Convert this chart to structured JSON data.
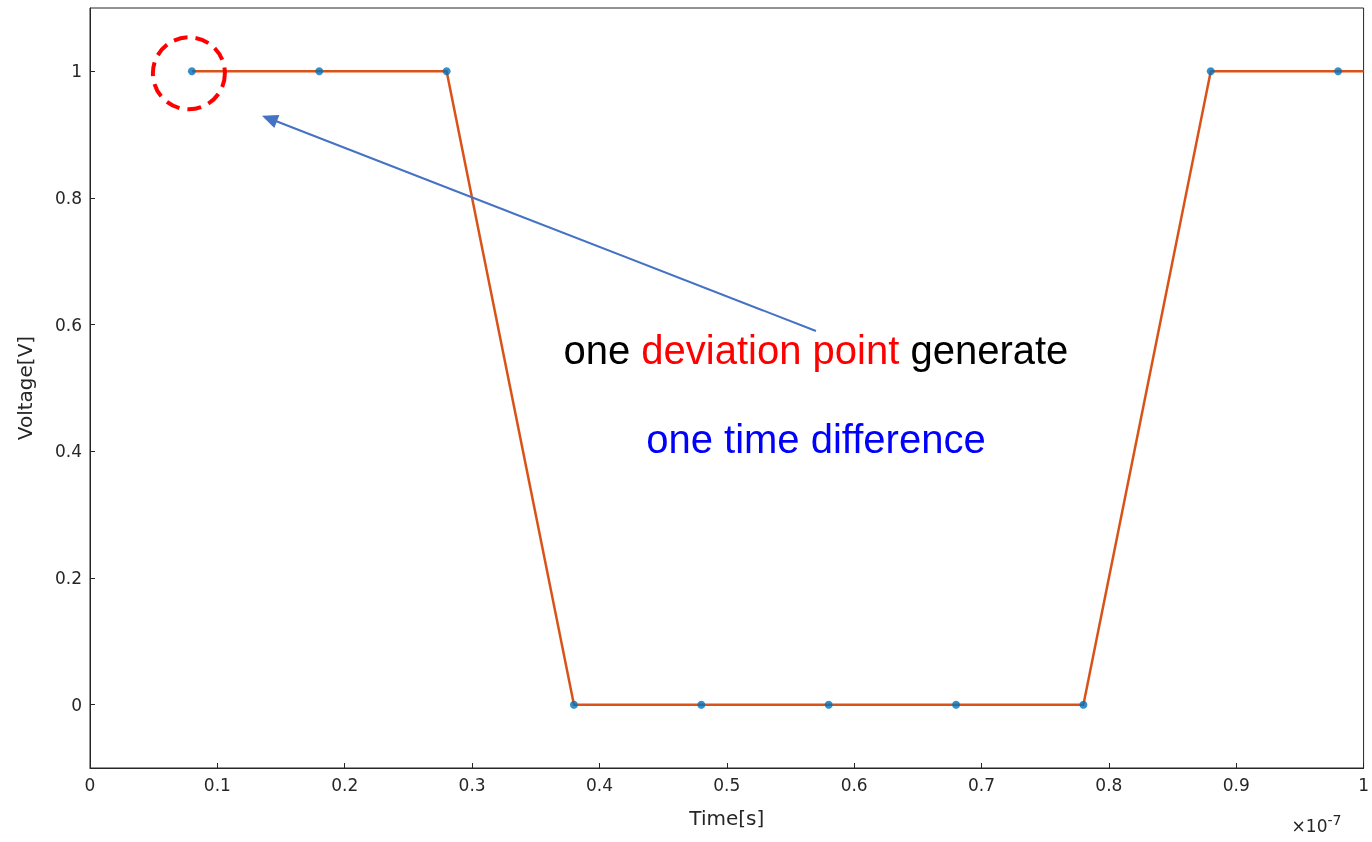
{
  "chart_data": {
    "type": "scatter",
    "xlabel": "Time[s]",
    "ylabel": "Voltage[V]",
    "xlim": [
      0,
      1
    ],
    "ylim": [
      -0.1,
      1.1
    ],
    "xticks": [
      0,
      0.1,
      0.2,
      0.3,
      0.4,
      0.5,
      0.6,
      0.7,
      0.8,
      0.9,
      1
    ],
    "yticks": [
      0,
      0.2,
      0.4,
      0.6,
      0.8,
      1
    ],
    "grid": false,
    "series": [
      {
        "marker": "circle",
        "color": "#0072bd",
        "x": [
          0.08,
          0.18,
          0.28,
          0.38,
          0.48,
          0.58,
          0.68,
          0.78,
          0.88,
          0.98
        ],
        "values": [
          1,
          1,
          1,
          0,
          0,
          0,
          0,
          0,
          1,
          1
        ]
      },
      {
        "type": "line",
        "marker": "none",
        "line_style": "solid",
        "color": "#d95319",
        "x": [
          0.08,
          0.18,
          0.28,
          0.38,
          0.48,
          0.58,
          0.68,
          0.78,
          0.88,
          0.98,
          1
        ],
        "values": [
          1,
          1,
          1,
          0,
          0,
          0,
          0,
          0,
          1,
          1,
          1
        ]
      }
    ],
    "annotations": [
      "one",
      "deviation point",
      "generate",
      "one time difference",
      "×10$^{-7}$"
    ]
  }
}
